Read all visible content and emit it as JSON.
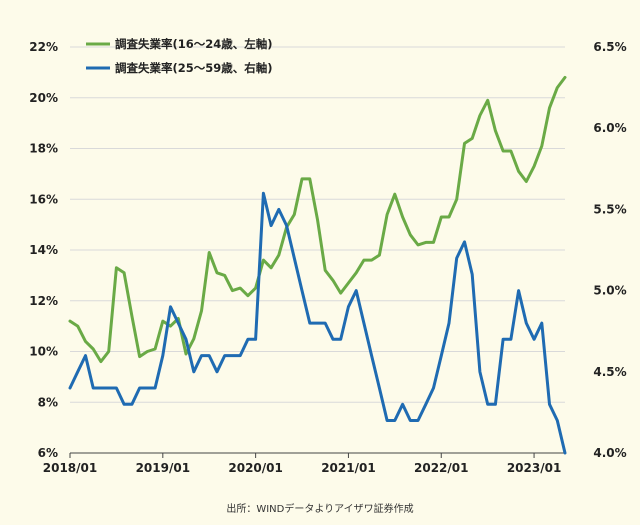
{
  "chart_data": {
    "type": "line",
    "title": "",
    "source": "出所：WINDデータよりアイザワ証券作成",
    "x_tick_labels": [
      "2018/01",
      "2019/01",
      "2020/01",
      "2021/01",
      "2022/01",
      "2023/01"
    ],
    "y_left": {
      "lim": [
        6,
        22
      ],
      "ticks": [
        6,
        8,
        10,
        12,
        14,
        16,
        18,
        20,
        22
      ],
      "tick_labels": [
        "6%",
        "8%",
        "10%",
        "12%",
        "14%",
        "16%",
        "18%",
        "20%",
        "22%"
      ]
    },
    "y_right": {
      "lim": [
        4.0,
        6.5
      ],
      "ticks": [
        4.0,
        4.5,
        5.0,
        5.5,
        6.0,
        6.5
      ],
      "tick_labels": [
        "4.0%",
        "4.5%",
        "5.0%",
        "5.5%",
        "6.0%",
        "6.5%"
      ]
    },
    "grid": true,
    "legend": "top-left",
    "x": [
      "2018/01",
      "2018/02",
      "2018/03",
      "2018/04",
      "2018/05",
      "2018/06",
      "2018/07",
      "2018/08",
      "2018/09",
      "2018/10",
      "2018/11",
      "2018/12",
      "2019/01",
      "2019/02",
      "2019/03",
      "2019/04",
      "2019/05",
      "2019/06",
      "2019/07",
      "2019/08",
      "2019/09",
      "2019/10",
      "2019/11",
      "2019/12",
      "2020/01",
      "2020/02",
      "2020/03",
      "2020/04",
      "2020/05",
      "2020/06",
      "2020/07",
      "2020/08",
      "2020/09",
      "2020/10",
      "2020/11",
      "2020/12",
      "2021/01",
      "2021/02",
      "2021/03",
      "2021/04",
      "2021/05",
      "2021/06",
      "2021/07",
      "2021/08",
      "2021/09",
      "2021/10",
      "2021/11",
      "2021/12",
      "2022/01",
      "2022/02",
      "2022/03",
      "2022/04",
      "2022/05",
      "2022/06",
      "2022/07",
      "2022/08",
      "2022/09",
      "2022/10",
      "2022/11",
      "2022/12",
      "2023/01",
      "2023/02",
      "2023/03",
      "2023/04",
      "2023/05"
    ],
    "series": [
      {
        "name": "調査失業率(16～24歳、左軸)",
        "axis": "left",
        "color": "#6aaa46",
        "values": [
          11.2,
          11.0,
          10.4,
          10.1,
          9.6,
          10.0,
          13.3,
          13.1,
          11.4,
          9.8,
          10.0,
          10.1,
          11.2,
          11.0,
          11.3,
          9.9,
          10.5,
          11.6,
          13.9,
          13.1,
          13.0,
          12.4,
          12.5,
          12.2,
          12.5,
          13.6,
          13.3,
          13.8,
          14.9,
          15.4,
          16.8,
          16.8,
          15.2,
          13.2,
          12.8,
          12.3,
          12.7,
          13.1,
          13.6,
          13.6,
          13.8,
          15.4,
          16.2,
          15.3,
          14.6,
          14.2,
          14.3,
          14.3,
          15.3,
          15.3,
          16.0,
          18.2,
          18.4,
          19.3,
          19.9,
          18.7,
          17.9,
          17.9,
          17.1,
          16.7,
          17.3,
          18.1,
          19.6,
          20.4,
          20.8
        ]
      },
      {
        "name": "調査失業率(25～59歳、右軸)",
        "axis": "right",
        "color": "#1f6bb2",
        "values": [
          4.4,
          4.5,
          4.6,
          4.4,
          4.4,
          4.4,
          4.4,
          4.3,
          4.3,
          4.4,
          4.4,
          4.4,
          4.6,
          4.9,
          4.8,
          4.7,
          4.5,
          4.6,
          4.6,
          4.5,
          4.6,
          4.6,
          4.6,
          4.7,
          4.7,
          5.6,
          5.4,
          5.5,
          5.4,
          5.2,
          5.0,
          4.8,
          4.8,
          4.8,
          4.7,
          4.7,
          4.9,
          5.0,
          4.8,
          4.6,
          4.4,
          4.2,
          4.2,
          4.3,
          4.2,
          4.2,
          4.3,
          4.4,
          4.6,
          4.8,
          5.2,
          5.3,
          5.1,
          4.5,
          4.3,
          4.3,
          4.7,
          4.7,
          5.0,
          4.8,
          4.7,
          4.8,
          4.3,
          4.2,
          4.0
        ]
      }
    ]
  }
}
